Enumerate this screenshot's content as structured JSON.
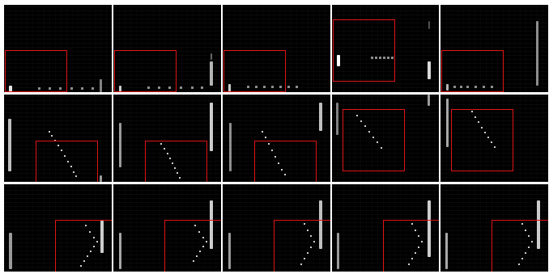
{
  "grid": {
    "rows": 3,
    "cols": 5,
    "background": "#000000",
    "separator_color": "#ffffff",
    "roi_color": "#e01414"
  },
  "panels": [
    {
      "row": 0,
      "col": 0,
      "pattern": "dots-horizontal",
      "has_roi": true
    },
    {
      "row": 0,
      "col": 1,
      "pattern": "dots-horizontal",
      "has_roi": true
    },
    {
      "row": 0,
      "col": 2,
      "pattern": "dots-horizontal",
      "has_roi": true
    },
    {
      "row": 0,
      "col": 3,
      "pattern": "dots-horizontal",
      "has_roi": true
    },
    {
      "row": 0,
      "col": 4,
      "pattern": "dots-horizontal",
      "has_roi": true
    },
    {
      "row": 1,
      "col": 0,
      "pattern": "dots-diagonal",
      "has_roi": true
    },
    {
      "row": 1,
      "col": 1,
      "pattern": "dots-diagonal",
      "has_roi": true
    },
    {
      "row": 1,
      "col": 2,
      "pattern": "dots-diagonal",
      "has_roi": true
    },
    {
      "row": 1,
      "col": 3,
      "pattern": "dots-diagonal",
      "has_roi": true
    },
    {
      "row": 1,
      "col": 4,
      "pattern": "dots-diagonal",
      "has_roi": true
    },
    {
      "row": 2,
      "col": 0,
      "pattern": "dots-chevron",
      "has_roi": true
    },
    {
      "row": 2,
      "col": 1,
      "pattern": "dots-chevron",
      "has_roi": true
    },
    {
      "row": 2,
      "col": 2,
      "pattern": "dots-chevron",
      "has_roi": true
    },
    {
      "row": 2,
      "col": 3,
      "pattern": "dots-chevron",
      "has_roi": true
    },
    {
      "row": 2,
      "col": 4,
      "pattern": "dots-chevron",
      "has_roi": true
    }
  ]
}
